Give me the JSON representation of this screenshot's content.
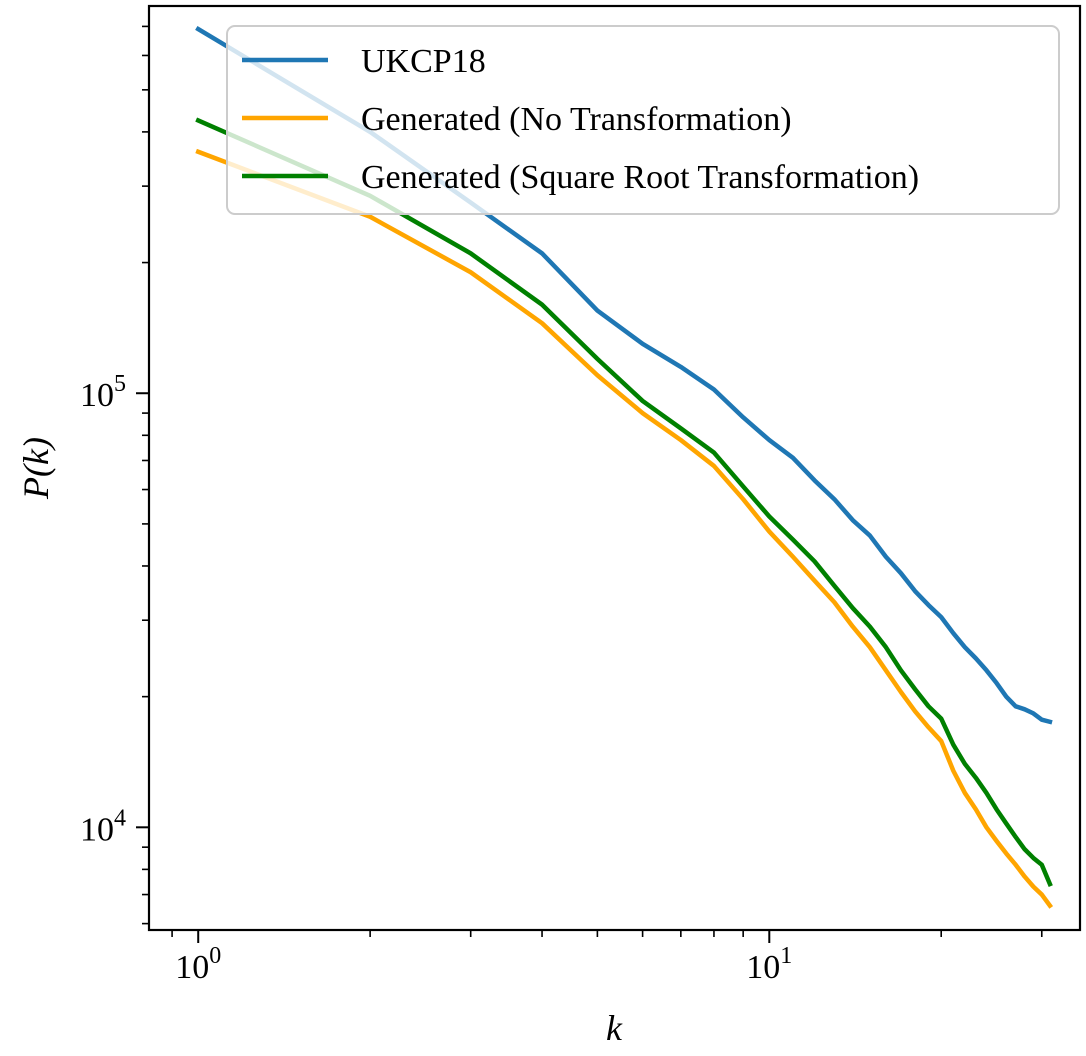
{
  "chart_data": {
    "type": "line",
    "xscale": "log",
    "yscale": "log",
    "xlim": [
      0.82,
      35
    ],
    "ylim": [
      5800,
      780000
    ],
    "xlabel": "k",
    "ylabel": "P(k)",
    "legend_placement": "top-right",
    "grid": false,
    "x_ticks": [
      {
        "value": 1,
        "base": "10",
        "exp": "0"
      },
      {
        "value": 10,
        "base": "10",
        "exp": "1"
      }
    ],
    "y_ticks": [
      {
        "value": 10000,
        "base": "10",
        "exp": "4"
      },
      {
        "value": 100000,
        "base": "10",
        "exp": "5"
      }
    ],
    "x": [
      1,
      2,
      3,
      4,
      5,
      6,
      7,
      8,
      9,
      10,
      11,
      12,
      13,
      14,
      15,
      16,
      17,
      18,
      19,
      20,
      21,
      22,
      23,
      24,
      25,
      26,
      27,
      28,
      29,
      30,
      31
    ],
    "series": [
      {
        "name": "UKCP18",
        "color": "#1f77b4",
        "values": [
          690000,
          400000,
          275000,
          210000,
          155000,
          130000,
          115000,
          102000,
          88000,
          78000,
          71000,
          63000,
          57000,
          51000,
          47000,
          42000,
          38500,
          35000,
          32500,
          30500,
          28000,
          26000,
          24500,
          23000,
          21500,
          20000,
          19000,
          18700,
          18300,
          17700,
          17500
        ]
      },
      {
        "name": "Generated (No Transformation)",
        "color": "#ffa500",
        "values": [
          360000,
          255000,
          190000,
          145000,
          110000,
          90000,
          78000,
          68000,
          57000,
          48000,
          42000,
          37000,
          33000,
          29000,
          26000,
          23000,
          20500,
          18500,
          17000,
          15800,
          13500,
          12000,
          11000,
          10000,
          9300,
          8700,
          8200,
          7700,
          7300,
          7000,
          6600
        ]
      },
      {
        "name": "Generated (Square Root Transformation)",
        "color": "#008000",
        "values": [
          425000,
          285000,
          210000,
          160000,
          120000,
          96000,
          83000,
          73000,
          61000,
          52000,
          46000,
          41000,
          36000,
          32000,
          29000,
          26000,
          23000,
          20800,
          19000,
          17800,
          15500,
          14000,
          13000,
          12000,
          11000,
          10200,
          9500,
          8900,
          8500,
          8200,
          7400
        ]
      }
    ]
  }
}
